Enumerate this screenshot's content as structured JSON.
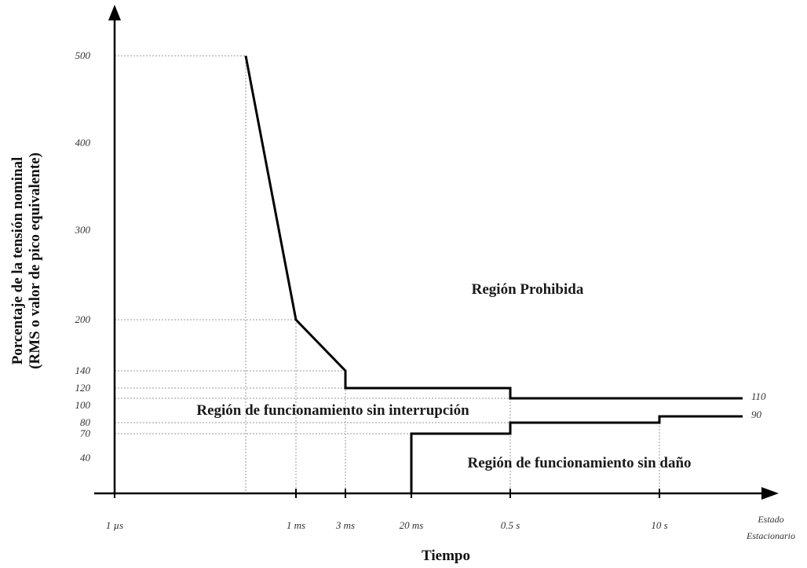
{
  "chart_data": {
    "type": "line",
    "xlabel": "Tiempo",
    "ylabel_lines": [
      "Porcentaje de la tensión nominal",
      "(RMS o valor de pico equivalente)"
    ],
    "y_ticks": [
      500,
      400,
      300,
      200,
      140,
      120,
      100,
      80,
      70,
      40
    ],
    "x_ticks": [
      "1 µs",
      "1 ms",
      "3 ms",
      "20 ms",
      "0.5 s",
      "10 s",
      "Estado Estacionario"
    ],
    "x_tick_lines": [
      [
        "1 µs"
      ],
      [
        "1 ms"
      ],
      [
        "3 ms"
      ],
      [
        "20 ms"
      ],
      [
        "0.5 s"
      ],
      [
        "10 s"
      ],
      [
        "Estado",
        "Estacionario"
      ]
    ],
    "x_positions": {
      "1 µs": 0,
      "1 ms": 1,
      "3 ms": 1.35,
      "20 ms": 1.8,
      "0.5 s": 2.5,
      "10 s": 3.5,
      "Estado Estacionario": 4.25
    },
    "series": [
      {
        "label": "110",
        "points": [
          [
            0.65,
            500
          ],
          [
            1,
            200
          ],
          [
            1.35,
            140
          ],
          [
            1.35,
            120
          ],
          [
            2.5,
            120
          ],
          [
            2.5,
            110
          ],
          [
            4.25,
            110
          ]
        ]
      },
      {
        "label": "90",
        "points": [
          [
            1.8,
            0
          ],
          [
            1.8,
            70
          ],
          [
            2.5,
            70
          ],
          [
            2.5,
            80
          ],
          [
            3.5,
            80
          ],
          [
            3.5,
            90
          ],
          [
            4.25,
            90
          ]
        ]
      }
    ],
    "regions": [
      {
        "text": "Región Prohibida"
      },
      {
        "text": "Región de funcionamiento sin interrupción"
      },
      {
        "text": "Región de funcionamiento sin daño"
      }
    ],
    "grid": "dotted guides"
  }
}
